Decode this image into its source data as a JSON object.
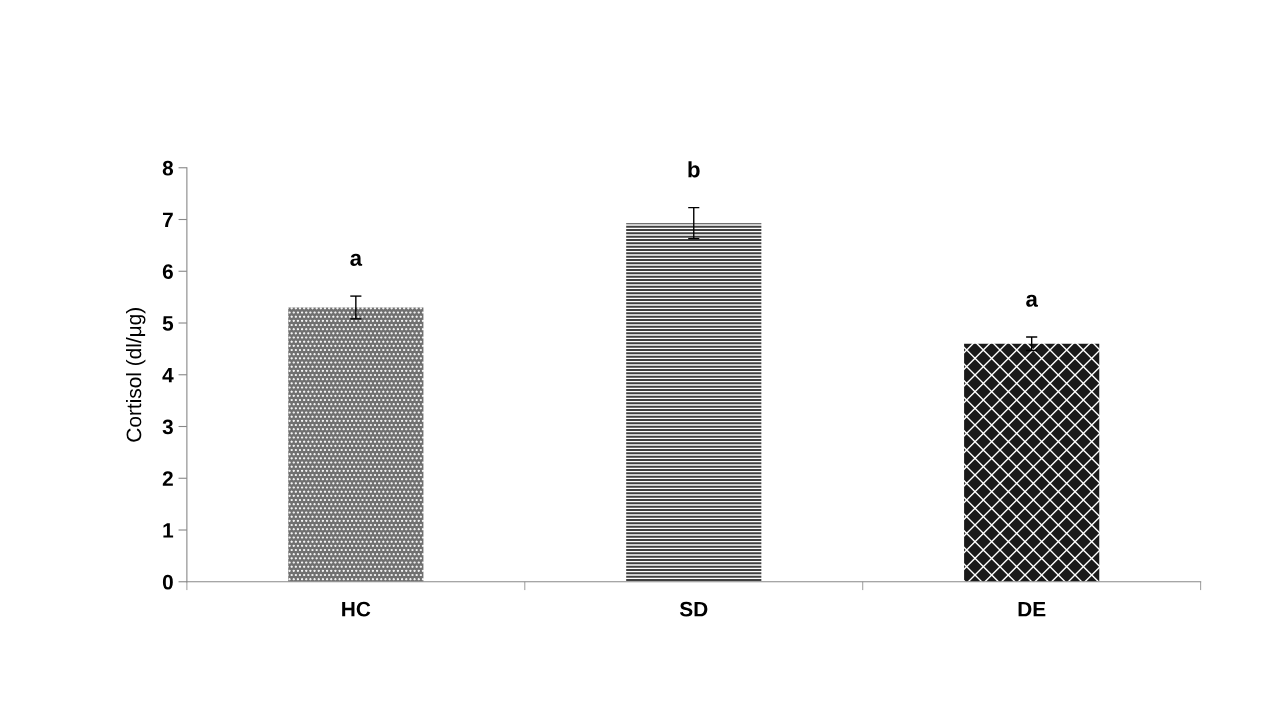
{
  "chart_data": {
    "type": "bar",
    "ylabel": "Cortisol (dl/μg)",
    "categories": [
      "HC",
      "SD",
      "DE"
    ],
    "values": [
      5.3,
      6.93,
      4.6
    ],
    "errors": [
      0.22,
      0.3,
      0.13
    ],
    "colors": [
      "#707070",
      "#404040",
      "#1a1a1a"
    ],
    "ylim": [
      0,
      8
    ],
    "yticks": [
      0,
      1,
      2,
      3,
      4,
      5,
      6,
      7,
      8
    ],
    "grid": false,
    "annotations": [
      "a",
      "b",
      "a"
    ]
  }
}
